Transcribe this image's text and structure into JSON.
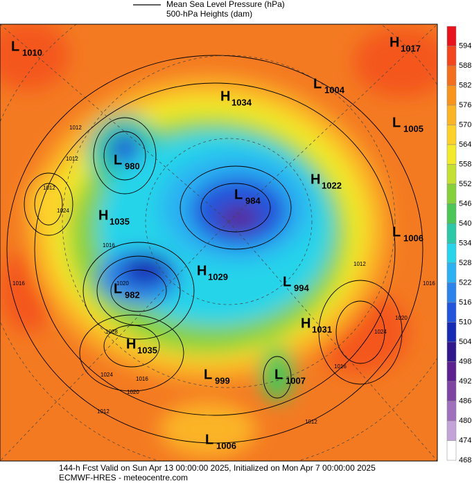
{
  "legend": {
    "pressure": "Mean Sea Level Pressure (hPa)",
    "heights": "500-hPa Heights (dam)"
  },
  "centers": [
    {
      "type": "L",
      "value": "1010"
    },
    {
      "type": "H",
      "value": "1017"
    },
    {
      "type": "L",
      "value": "1004"
    },
    {
      "type": "H",
      "value": "1034"
    },
    {
      "type": "L",
      "value": "1005"
    },
    {
      "type": "L",
      "value": "980"
    },
    {
      "type": "H",
      "value": "1022"
    },
    {
      "type": "L",
      "value": "984"
    },
    {
      "type": "H",
      "value": "1035"
    },
    {
      "type": "L",
      "value": "1006"
    },
    {
      "type": "H",
      "value": "1029"
    },
    {
      "type": "L",
      "value": "982"
    },
    {
      "type": "L",
      "value": "994"
    },
    {
      "type": "H",
      "value": "1031"
    },
    {
      "type": "H",
      "value": "1035"
    },
    {
      "type": "L",
      "value": "999"
    },
    {
      "type": "L",
      "value": "1007"
    },
    {
      "type": "L",
      "value": "1006"
    }
  ],
  "isobar_labels": [
    "1012",
    "1012",
    "1012",
    "1024",
    "1016",
    "1020",
    "1028",
    "1024",
    "1020",
    "1016",
    "1016",
    "1012",
    "1016",
    "1020",
    "1024",
    "1012",
    "1016",
    "1012"
  ],
  "colorbar": {
    "levels": [
      594,
      588,
      582,
      576,
      570,
      564,
      558,
      552,
      546,
      540,
      534,
      528,
      522,
      516,
      510,
      504,
      498,
      492,
      486,
      480,
      474,
      468
    ],
    "colors": [
      "#e8141c",
      "#f4461e",
      "#f46e20",
      "#f8941e",
      "#fbb426",
      "#fcd22a",
      "#f2ea2a",
      "#c4e032",
      "#86d03c",
      "#4cc656",
      "#2cc8a8",
      "#28d4ea",
      "#2cb2f2",
      "#2c84ea",
      "#2254dc",
      "#162ab4",
      "#30188a",
      "#5c2090",
      "#7e44a2",
      "#a070bc",
      "#c4a4d8",
      "#ffffff"
    ]
  },
  "footer": {
    "line1": "144-h Fcst Valid on Sun Apr 13 00:00:00 2025, Initialized on Mon Apr  7 00:00:00 2025",
    "line2": "ECMWF-HRES  - meteocentre.com"
  }
}
